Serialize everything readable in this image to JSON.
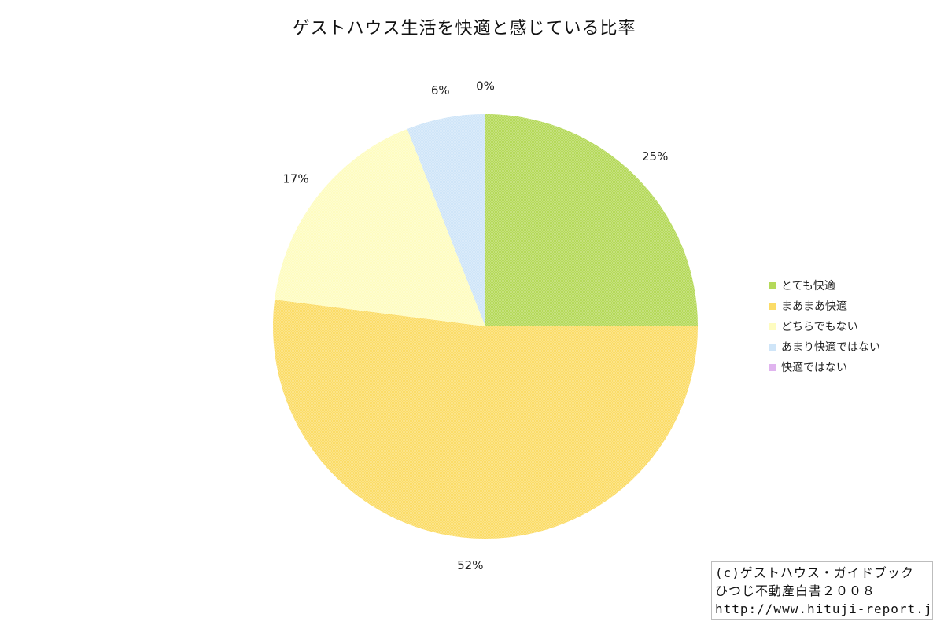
{
  "chart_data": {
    "type": "pie",
    "title": "ゲストハウス生活を快適と感じている比率",
    "categories": [
      "とても快適",
      "まあまあ快適",
      "どちらでもない",
      "あまり快適ではない",
      "快適ではない"
    ],
    "values": [
      25,
      52,
      17,
      6,
      0
    ],
    "value_labels": [
      "25%",
      "52%",
      "17%",
      "6%",
      "0%"
    ],
    "colors": [
      "#b5d95a",
      "#fbdc68",
      "#fefcc0",
      "#cfe5f8",
      "#e0b4ef"
    ],
    "start_angle": "12 o'clock",
    "direction": "clockwise",
    "legend_position": "right"
  },
  "credit": {
    "line1": "(c)ゲストハウス・ガイドブック",
    "line2": "ひつじ不動産白書２００８",
    "line3": "http://www.hituji-report.jp/"
  }
}
